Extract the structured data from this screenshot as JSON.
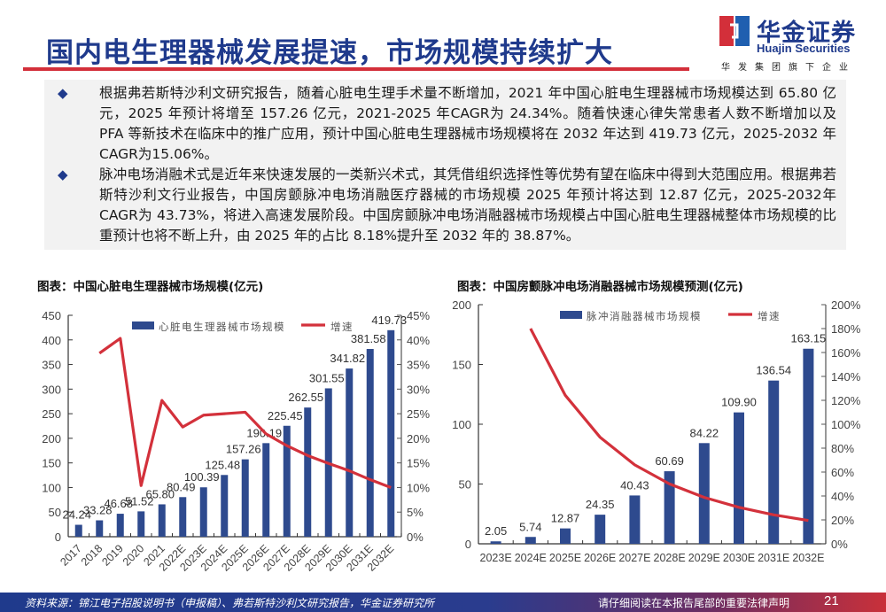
{
  "header": {
    "title": "国内电生理器械发展提速，市场规模持续扩大",
    "logo": {
      "cn": "华金证券",
      "en": "Huajin Securities",
      "sub": "华发集团旗下企业"
    }
  },
  "summary": {
    "bullets": [
      "根据弗若斯特沙利文研究报告，随着心脏电生理手术量不断增加，2021 年中国心脏电生理器械市场规模达到 65.80 亿元，2025 年预计将增至 157.26 亿元，2021-2025 年CAGR为 24.34%。随着快速心律失常患者人数不断增加以及 PFA 等新技术在临床中的推广应用，预计中国心脏电生理器械市场规模将在 2032 年达到 419.73 亿元，2025-2032 年CAGR为15.06%。",
      "脉冲电场消融术式是近年来快速发展的一类新兴术式，其凭借组织选择性等优势有望在临床中得到大范围应用。根据弗若斯特沙利文行业报告，中国房颤脉冲电场消融医疗器械的市场规模 2025 年预计将达到 12.87 亿元，2025-2032年CAGR为 43.73%，将进入高速发展阶段。中国房颤脉冲电场消融器械市场规模占中国心脏电生理器械整体市场规模的比重预计也将不断上升，由 2025 年的占比 8.18%提升至 2032 年的 38.87%。"
    ]
  },
  "colors": {
    "bar": "#2e4a8e",
    "line": "#d3313b",
    "title": "#1f3a8c",
    "accent_red": "#d32f3a"
  },
  "chart_data": [
    {
      "type": "bar",
      "title": "图表：中国心脏电生理器械市场规模(亿元)",
      "categories": [
        "2017",
        "2018",
        "2019",
        "2020",
        "2021",
        "2022E",
        "2023E",
        "2024E",
        "2025E",
        "2026E",
        "2027E",
        "2028E",
        "2029E",
        "2030E",
        "2031E",
        "2032E"
      ],
      "series": [
        {
          "name": "心脏电生理器械市场规模",
          "type": "bar",
          "axis": "left",
          "values": [
            24.24,
            33.28,
            46.68,
            51.52,
            65.8,
            80.49,
            100.39,
            125.48,
            157.26,
            190.19,
            225.45,
            262.55,
            301.55,
            341.82,
            381.58,
            419.73
          ],
          "labels": [
            "24.24",
            "33.28",
            "46.68",
            "51.52",
            "65.80",
            "80.49",
            "100.39",
            "125.48",
            "157.26",
            "190.19",
            "225.45",
            "262.55",
            "301.55",
            "341.82",
            "381.58",
            "419.73"
          ]
        },
        {
          "name": "增速",
          "type": "line",
          "axis": "right",
          "values": [
            null,
            37.3,
            40.3,
            10.4,
            27.7,
            22.3,
            24.7,
            25.0,
            25.3,
            20.9,
            18.5,
            16.5,
            14.9,
            13.4,
            11.6,
            10.0
          ]
        }
      ],
      "ylim": [
        0,
        450
      ],
      "yticks": [
        "0",
        "50",
        "100",
        "150",
        "200",
        "250",
        "300",
        "350",
        "400",
        "450"
      ],
      "y2lim": [
        0,
        45
      ],
      "y2ticks": [
        "0%",
        "5%",
        "10%",
        "15%",
        "20%",
        "25%",
        "30%",
        "35%",
        "40%",
        "45%"
      ],
      "legend": [
        "心脏电生理器械市场规模",
        "增速"
      ],
      "legend_position": "top",
      "grid": false
    },
    {
      "type": "bar",
      "title": "图表：中国房颤脉冲电场消融器械市场规模预测(亿元)",
      "categories": [
        "2023E",
        "2024E",
        "2025E",
        "2026E",
        "2027E",
        "2028E",
        "2029E",
        "2030E",
        "2031E",
        "2032E"
      ],
      "series": [
        {
          "name": "脉冲消融器械市场规模",
          "type": "bar",
          "axis": "left",
          "values": [
            2.05,
            5.74,
            12.87,
            24.35,
            40.43,
            60.69,
            84.22,
            109.9,
            136.54,
            163.15
          ],
          "labels": [
            "2.05",
            "5.74",
            "12.87",
            "24.35",
            "40.43",
            "60.69",
            "84.22",
            "109.90",
            "136.54",
            "163.15"
          ]
        },
        {
          "name": "增速",
          "type": "line",
          "axis": "right",
          "values": [
            null,
            180.0,
            124.2,
            89.2,
            66.0,
            50.1,
            38.8,
            30.5,
            24.2,
            19.5
          ]
        }
      ],
      "ylim": [
        0,
        200
      ],
      "yticks": [
        "0",
        "50",
        "100",
        "150",
        "200"
      ],
      "y2lim": [
        0,
        200
      ],
      "y2ticks": [
        "0%",
        "20%",
        "40%",
        "60%",
        "80%",
        "100%",
        "120%",
        "140%",
        "160%",
        "180%",
        "200%"
      ],
      "legend": [
        "脉冲消融器械市场规模",
        "增速"
      ],
      "legend_position": "top",
      "grid": false
    }
  ],
  "footer": {
    "source": "资料来源：锦江电子招股说明书（申报稿）、弗若斯特沙利文研究报告，华金证券研究所",
    "note": "请仔细阅读在本报告尾部的重要法律声明",
    "page": "21"
  }
}
